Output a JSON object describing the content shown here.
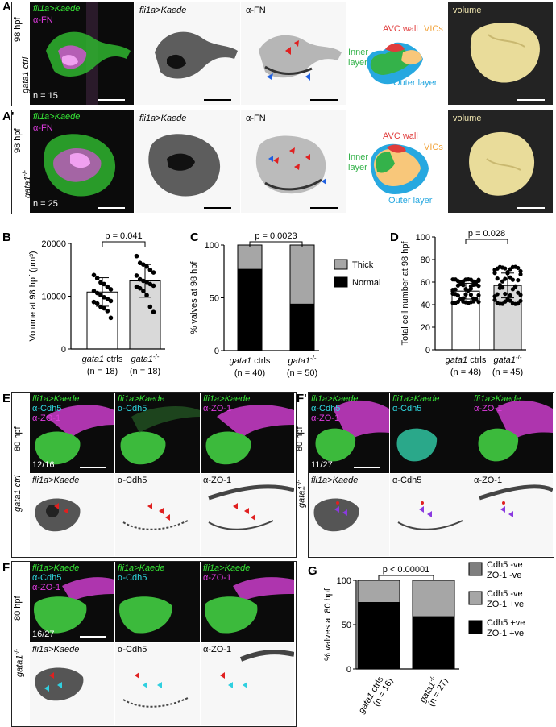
{
  "panels": {
    "A": {
      "label": "A",
      "stage": "98 hpf",
      "genotype": "gata1 ctrl",
      "n": "n = 15",
      "ch1": "fli1a>Kaede",
      "ch2": "α-FN",
      "ch_kaede": "fli1a>Kaede",
      "ch_fn": "α-FN",
      "diagram": {
        "avc": "AVC wall",
        "vics": "VICs",
        "inner1": "Inner",
        "inner2": "layer",
        "outer": "Outer layer"
      },
      "volume": "volume"
    },
    "A2": {
      "label": "A'",
      "stage": "98 hpf",
      "genotype": "gata1",
      "genotype_sup": "-/-",
      "n": "n = 25",
      "ch1": "fli1a>Kaede",
      "ch2": "α-FN",
      "ch_kaede": "fli1a>Kaede",
      "ch_fn": "α-FN",
      "diagram": {
        "avc": "AVC wall",
        "vics": "VICs",
        "inner1": "Inner",
        "inner2": "layer",
        "outer": "Outer layer"
      },
      "volume": "volume"
    },
    "E": {
      "label": "E",
      "stage": "80 hpf",
      "genotype": "gata1 ctrl",
      "count": "12/16",
      "top": [
        "fli1a>Kaede",
        "fli1a>Kaede",
        "fli1a>Kaede"
      ],
      "top2": [
        "α-ZO-1",
        "α-Cdh5",
        "α-ZO-1"
      ],
      "top1b": "α-Cdh5",
      "bottom": [
        "fli1a>Kaede",
        "α-Cdh5",
        "α-ZO-1"
      ]
    },
    "F2": {
      "label": "F'",
      "stage": "80 hpf",
      "genotype": "gata1",
      "genotype_sup": "-/-",
      "count": "11/27",
      "top": [
        "fli1a>Kaede",
        "fli1a>Kaede",
        "fli1a>Kaede"
      ],
      "top1b": "α-Cdh5",
      "top1c": "α-ZO-1",
      "top2b": "α-Cdh5",
      "top3b": "α-ZO-1",
      "bottom": [
        "fli1a>Kaede",
        "α-Cdh5",
        "α-ZO-1"
      ]
    },
    "F": {
      "label": "F",
      "stage": "80 hpf",
      "genotype": "gata1",
      "genotype_sup": "-/-",
      "count": "16/27",
      "top": [
        "fli1a>Kaede",
        "fli1a>Kaede",
        "fli1a>Kaede"
      ],
      "top1b": "α-Cdh5",
      "top1c": "α-ZO-1",
      "top2b": "α-Cdh5",
      "top3b": "α-ZO-1",
      "bottom": [
        "fli1a>Kaede",
        "α-Cdh5",
        "α-ZO-1"
      ]
    },
    "B_label": "B",
    "C_label": "C",
    "D_label": "D",
    "G_label": "G"
  },
  "chart_data": [
    {
      "id": "B",
      "type": "bar",
      "ylabel": "Volume at 98 hpf (µm³)",
      "ylim": [
        0,
        20000
      ],
      "yticks": [
        0,
        10000,
        20000
      ],
      "categories": [
        "gata1 ctrls",
        "gata1-/-"
      ],
      "cat_n": [
        "(n = 18)",
        "(n = 18)"
      ],
      "values": [
        10800,
        12900
      ],
      "sd": [
        2700,
        3100
      ],
      "pvalue": "p = 0.041",
      "colors": [
        "#ffffff",
        "#d9d9d9"
      ],
      "points": [
        [
          14000,
          13400,
          12600,
          12300,
          11800,
          11300,
          11000,
          10600,
          10200,
          9800,
          9500,
          9100,
          8900,
          8600,
          8000,
          7700,
          7200,
          5900
        ],
        [
          17600,
          16300,
          16000,
          15600,
          15000,
          14500,
          13900,
          13200,
          12900,
          12700,
          12300,
          12000,
          11800,
          11500,
          11000,
          10200,
          8000,
          7000
        ]
      ]
    },
    {
      "id": "C",
      "type": "bar",
      "stacked": true,
      "ylabel": "% valves at 98 hpf",
      "ylim": [
        0,
        100
      ],
      "yticks": [
        0,
        50,
        100
      ],
      "categories": [
        "gata1 ctrls",
        "gata1-/-"
      ],
      "cat_n": [
        "(n = 40)",
        "(n = 50)"
      ],
      "series": [
        {
          "name": "Normal",
          "values": [
            77,
            44
          ],
          "color": "#000000"
        },
        {
          "name": "Thick",
          "values": [
            23,
            56
          ],
          "color": "#a6a6a6"
        }
      ],
      "pvalue": "p = 0.0023"
    },
    {
      "id": "D",
      "type": "bar",
      "ylabel": "Total cell number at 98 hpf",
      "ylim": [
        0,
        100
      ],
      "yticks": [
        0,
        20,
        40,
        60,
        80,
        100
      ],
      "categories": [
        "gata1 ctrls",
        "gata1-/-"
      ],
      "cat_n": [
        "(n = 48)",
        "(n = 45)"
      ],
      "values": [
        52,
        57
      ],
      "sd": [
        7,
        11
      ],
      "pvalue": "p = 0.028",
      "colors": [
        "#ffffff",
        "#d9d9d9"
      ]
    },
    {
      "id": "G",
      "type": "bar",
      "stacked": true,
      "ylabel": "% valves at 80 hpf",
      "ylim": [
        0,
        100
      ],
      "yticks": [
        0,
        50,
        100
      ],
      "categories": [
        "gata1 ctrls",
        "gata1-/-"
      ],
      "cat_n": [
        "(n = 16)",
        "(n = 27)"
      ],
      "series": [
        {
          "name": "Cdh5 +ve ZO-1 +ve",
          "values": [
            75,
            59
          ],
          "color": "#000000"
        },
        {
          "name": "Cdh5 -ve ZO-1 +ve",
          "values": [
            25,
            41
          ],
          "color": "#a6a6a6"
        },
        {
          "name": "Cdh5 -ve ZO-1 -ve",
          "values": [
            0,
            0
          ],
          "color": "#7f7f7f"
        }
      ],
      "legend": [
        [
          "Cdh5 -ve",
          "ZO-1 -ve"
        ],
        [
          "Cdh5 -ve",
          "ZO-1 +ve"
        ],
        [
          "Cdh5 +ve",
          "ZO-1 +ve"
        ]
      ],
      "pvalue": "p < 0.00001"
    }
  ]
}
